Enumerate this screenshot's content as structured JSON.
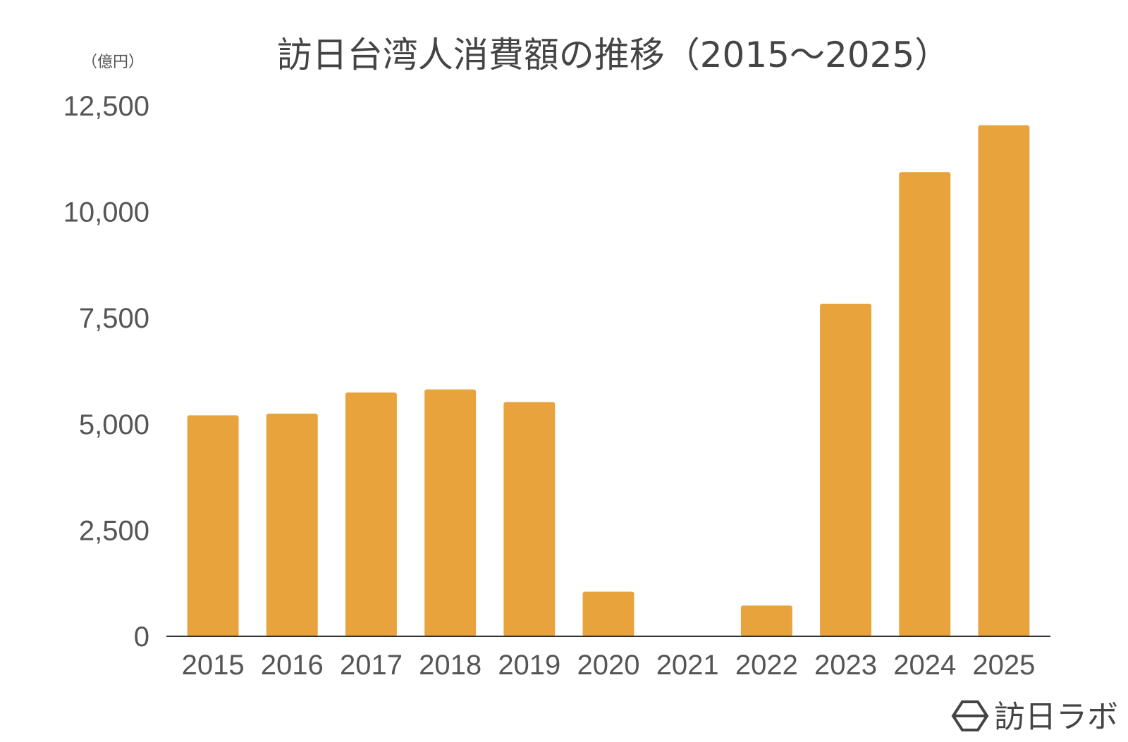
{
  "chart_data": {
    "type": "bar",
    "title": "訪日台湾人消費額の推移（2015～2025）",
    "ylabel": "（億円）",
    "xlabel": "",
    "categories": [
      "2015",
      "2016",
      "2017",
      "2018",
      "2019",
      "2020",
      "2021",
      "2022",
      "2023",
      "2024",
      "2025"
    ],
    "values": [
      5207,
      5245,
      5744,
      5817,
      5517,
      1053,
      0,
      724,
      7835,
      10936,
      12040
    ],
    "ylim": [
      0,
      12500
    ],
    "yticks": [
      0,
      2500,
      5000,
      7500,
      10000,
      12500
    ],
    "ytick_labels": [
      "0",
      "2,500",
      "5,000",
      "7,500",
      "10,000",
      "12,500"
    ],
    "bar_color": "#E8A33D",
    "grid": false,
    "legend": "none"
  },
  "branding": {
    "logo_text": "訪日ラボ",
    "logo_icon": "hexagon-logo-icon"
  }
}
